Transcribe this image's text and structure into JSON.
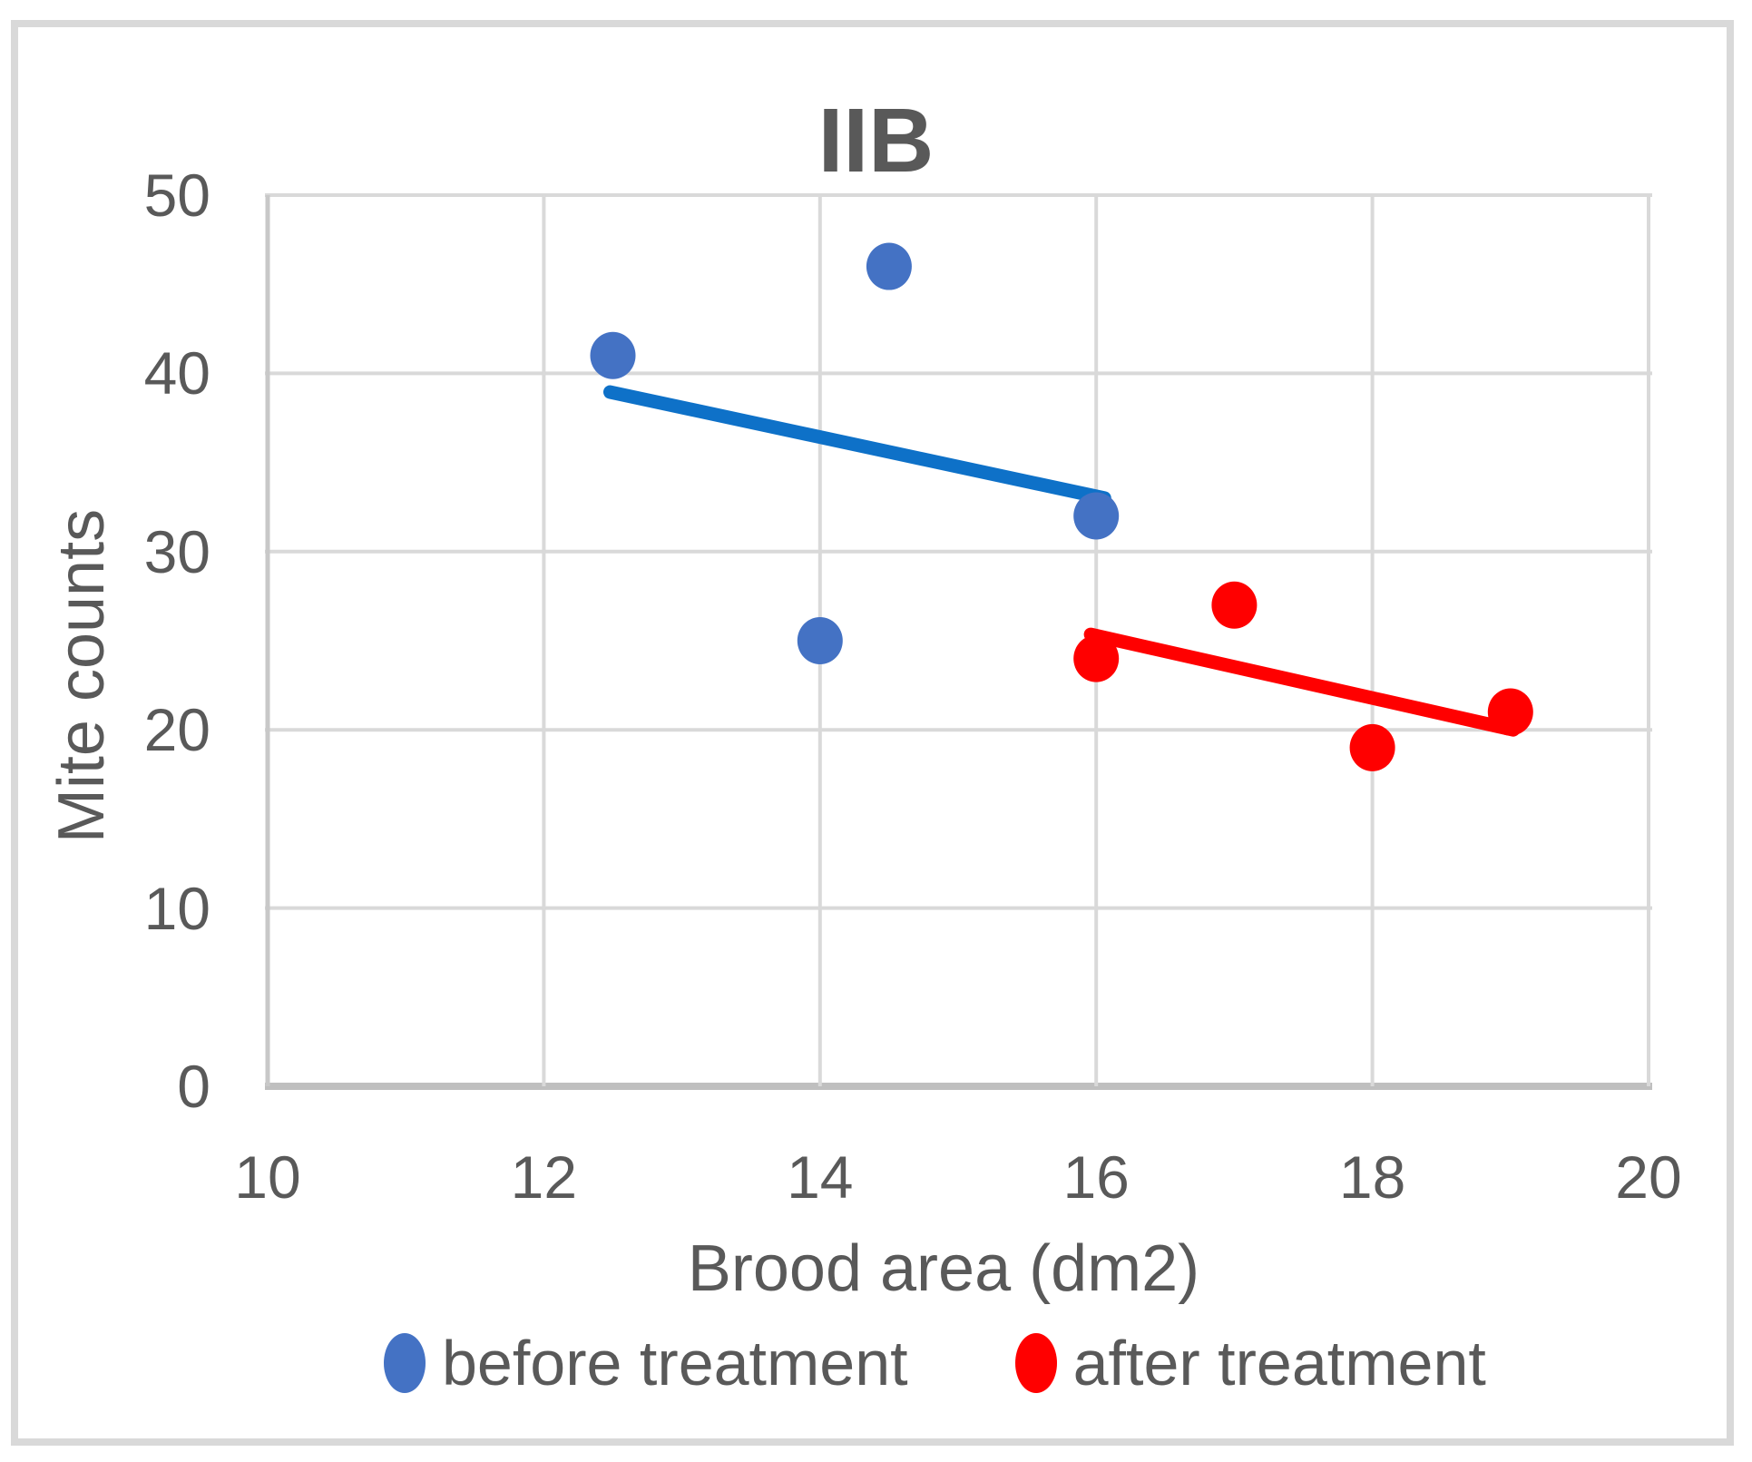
{
  "chart_data": {
    "type": "scatter",
    "title": "IIB",
    "xlabel": "Brood area (dm2)",
    "ylabel": "Mite counts",
    "xlim": [
      10,
      20
    ],
    "ylim": [
      0,
      50
    ],
    "xticks": [
      10,
      12,
      14,
      16,
      18,
      20
    ],
    "yticks": [
      0,
      10,
      20,
      30,
      40,
      50
    ],
    "grid": true,
    "legend_position": "bottom-center",
    "series": [
      {
        "name": "before treatment",
        "marker_color": "#4472C4",
        "points": [
          [
            12.5,
            41
          ],
          [
            14.5,
            46
          ],
          [
            14,
            25
          ],
          [
            16,
            32
          ]
        ],
        "trendline": {
          "color": "#0E71C8",
          "from": [
            12.48,
            38.95
          ],
          "to": [
            16.06,
            33.0
          ]
        }
      },
      {
        "name": "after treatment",
        "marker_color": "#FF0000",
        "points": [
          [
            16,
            24
          ],
          [
            17,
            27
          ],
          [
            18,
            19
          ],
          [
            19,
            21
          ]
        ],
        "trendline": {
          "color": "#FF0000",
          "from": [
            15.96,
            25.35
          ],
          "to": [
            19.02,
            20.0
          ]
        }
      }
    ]
  },
  "colors": {
    "text": "#595959",
    "gridline": "#D9D9D9",
    "left_axis_line": "#C8C8C8",
    "bottom_axis_line": "#BFBFBF",
    "frame_border": "#D9D9D9",
    "background": "#FFFFFF"
  }
}
